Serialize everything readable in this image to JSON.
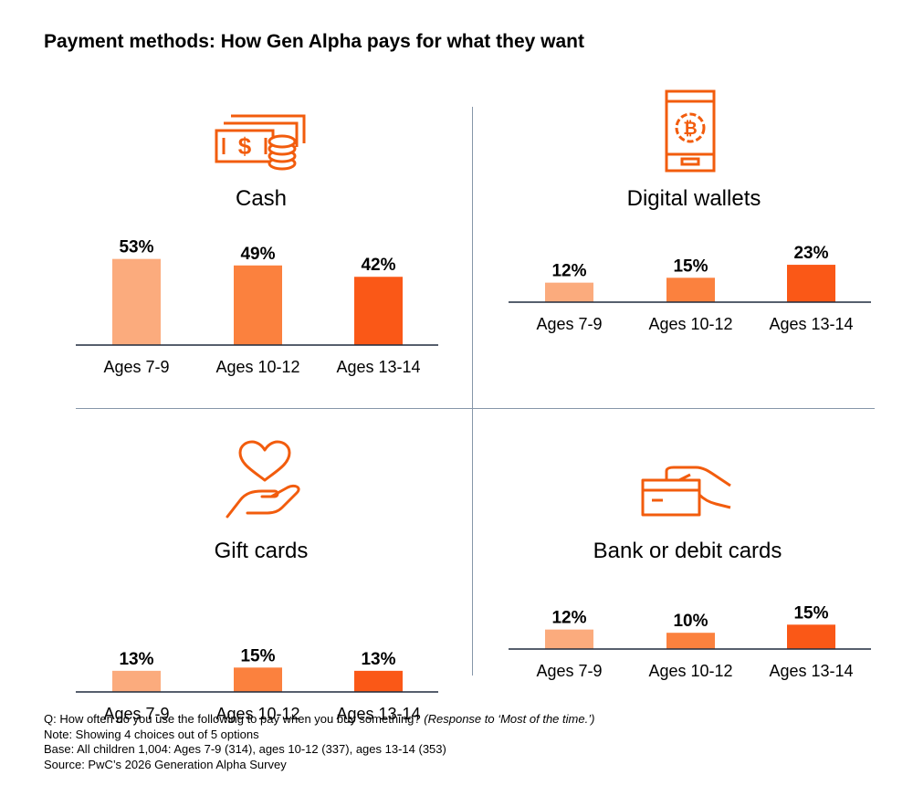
{
  "title": "Payment methods: How Gen Alpha pays for what they want",
  "colors": {
    "age_7_9": "#fbab7d",
    "age_10_12": "#fb813e",
    "age_13_14": "#fa5817",
    "icon": "#f25c0d",
    "baseline": "#1f2a3d",
    "divider": "#8696a9"
  },
  "chart_data": [
    {
      "type": "bar",
      "title": "Cash",
      "icon": "cash-icon",
      "categories": [
        "Ages 7-9",
        "Ages 10-12",
        "Ages 13-14"
      ],
      "values": [
        53,
        49,
        42
      ],
      "value_labels": [
        "53%",
        "49%",
        "42%"
      ],
      "ylim": [
        0,
        100
      ]
    },
    {
      "type": "bar",
      "title": "Digital wallets",
      "icon": "digital-wallet-phone-icon",
      "categories": [
        "Ages 7-9",
        "Ages 10-12",
        "Ages 13-14"
      ],
      "values": [
        12,
        15,
        23
      ],
      "value_labels": [
        "12%",
        "15%",
        "23%"
      ],
      "ylim": [
        0,
        100
      ]
    },
    {
      "type": "bar",
      "title": "Gift cards",
      "icon": "gift-card-heart-hand-icon",
      "categories": [
        "Ages 7-9",
        "Ages 10-12",
        "Ages 13-14"
      ],
      "values": [
        13,
        15,
        13
      ],
      "value_labels": [
        "13%",
        "15%",
        "13%"
      ],
      "ylim": [
        0,
        100
      ]
    },
    {
      "type": "bar",
      "title": "Bank or debit cards",
      "icon": "bank-card-hand-icon",
      "categories": [
        "Ages 7-9",
        "Ages 10-12",
        "Ages 13-14"
      ],
      "values": [
        12,
        10,
        15
      ],
      "value_labels": [
        "12%",
        "10%",
        "15%"
      ],
      "ylim": [
        0,
        100
      ]
    }
  ],
  "footnotes": {
    "question": "Q: How often do you use the following to pay when you buy something?",
    "question_response": "(Response to ‘Most of the time.’)",
    "note": "Note: Showing 4 choices out of 5 options",
    "base": "Base: All children 1,004: Ages 7-9 (314), ages 10-12 (337), ages 13-14 (353)",
    "source": "Source: PwC’s 2026 Generation Alpha Survey"
  }
}
